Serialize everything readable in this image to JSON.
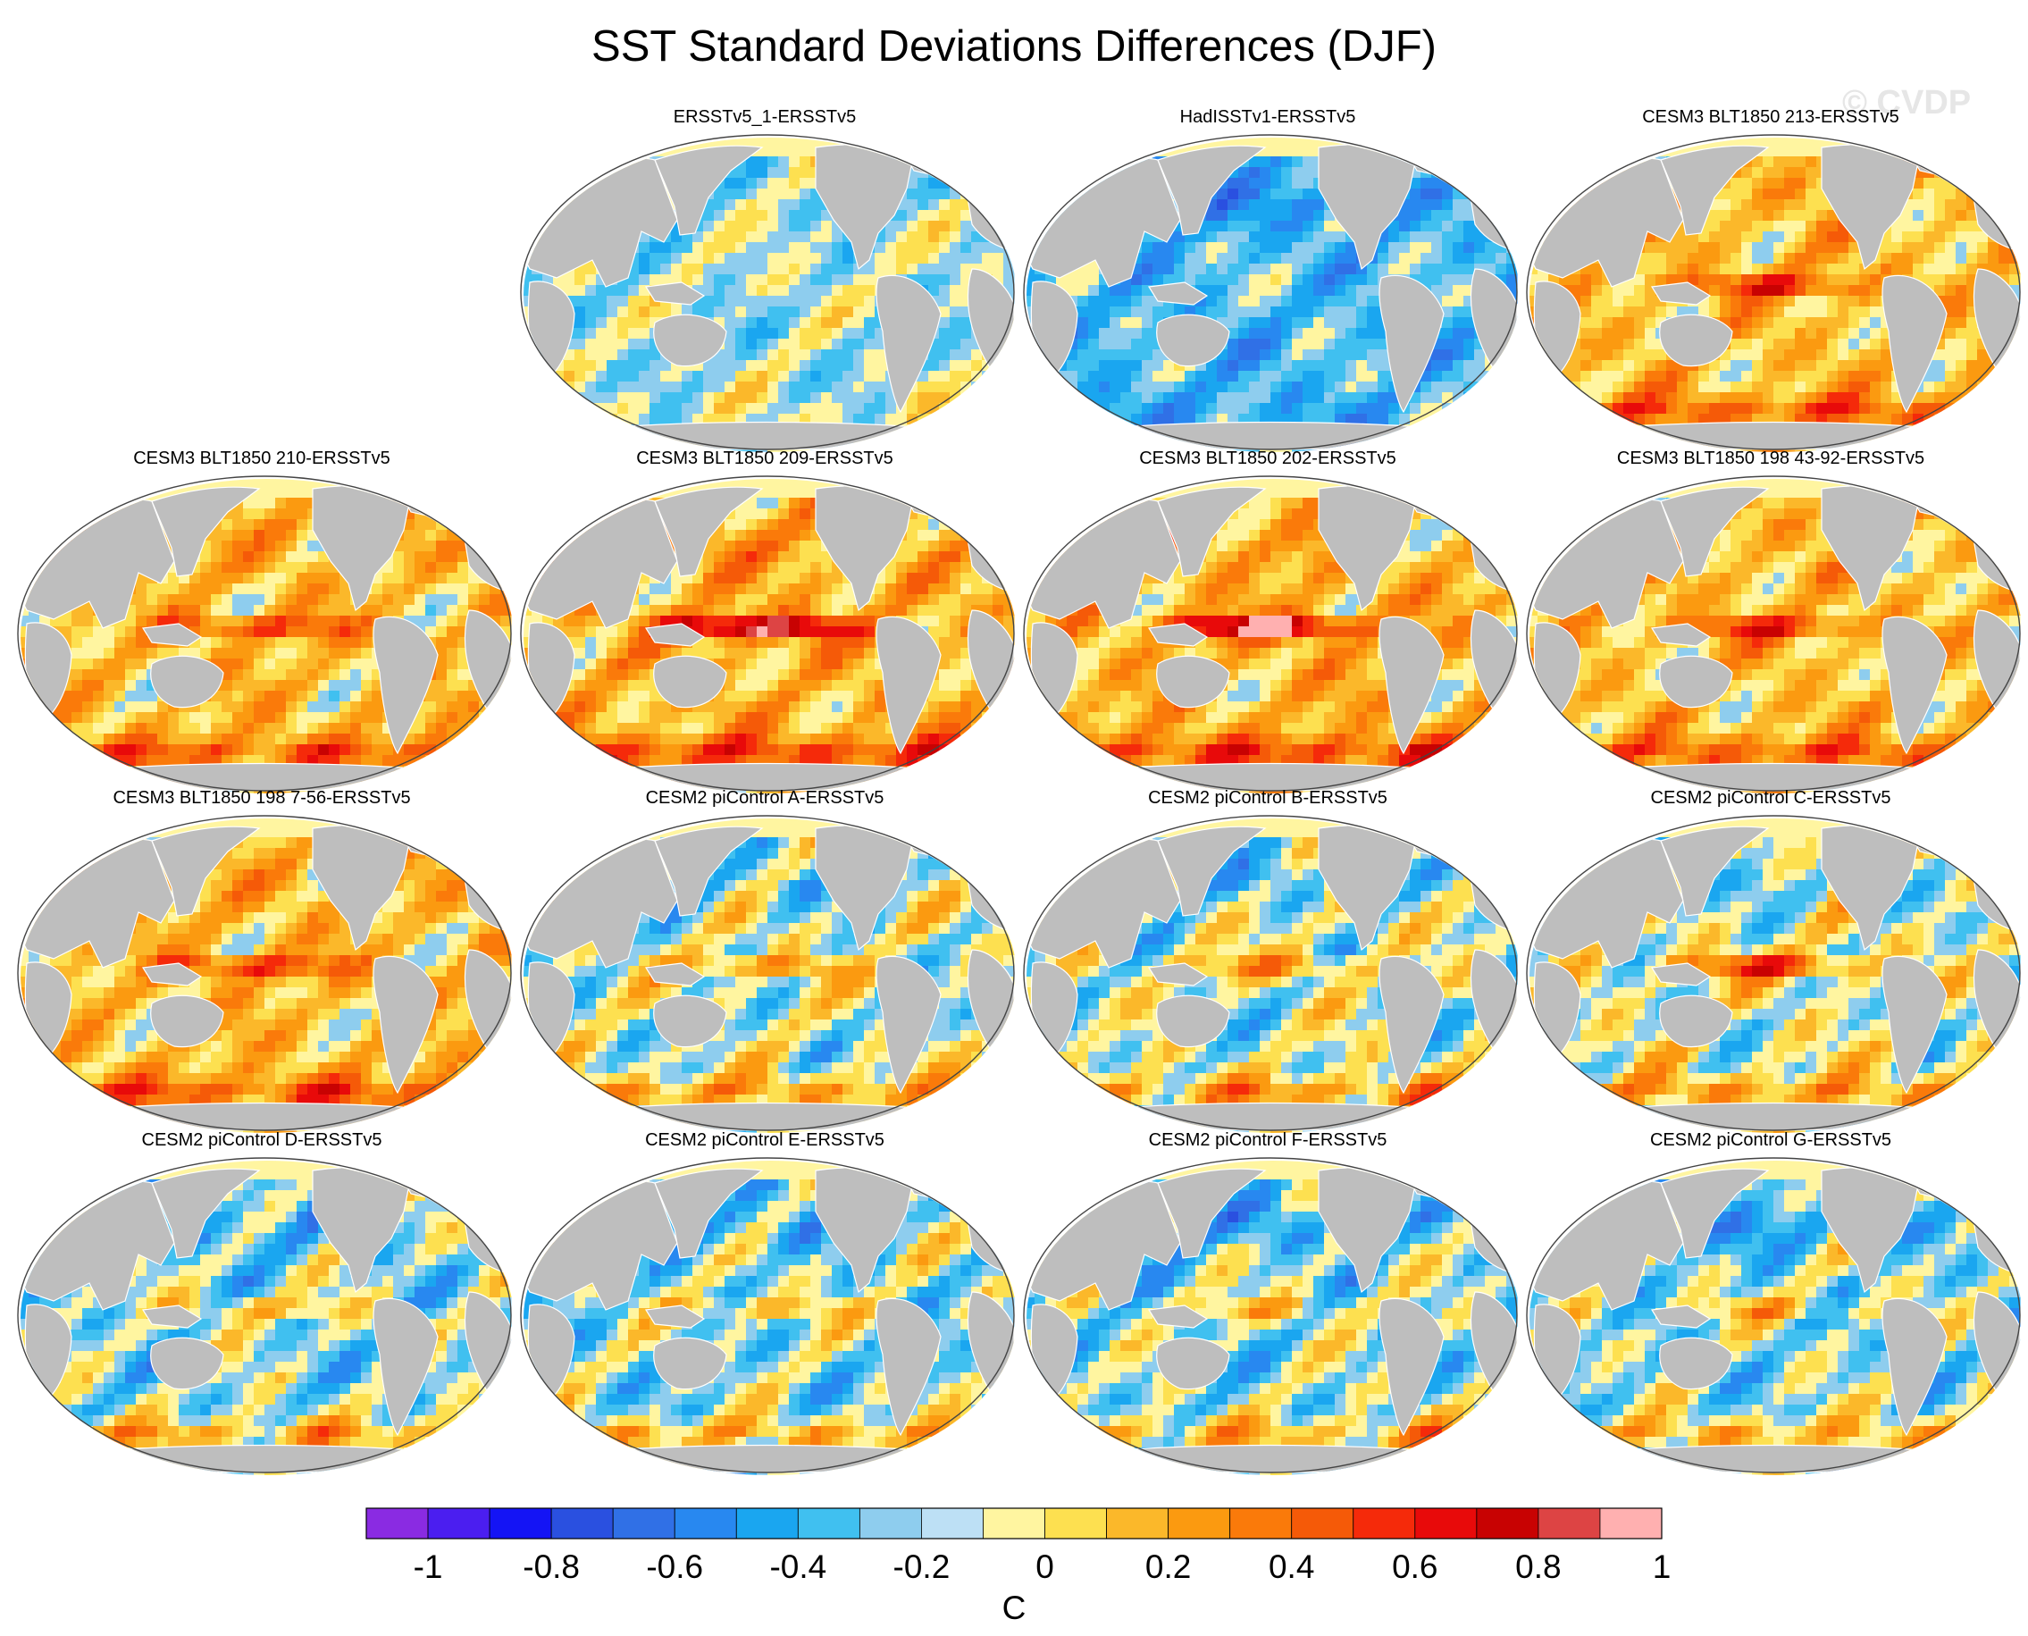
{
  "title": "SST Standard Deviations Differences (DJF)",
  "watermark": "© CVDP",
  "panels": [
    {
      "label": "ERSSTv5_1-ERSSTv5",
      "pattern": "ersst"
    },
    {
      "label": "HadISSTv1-ERSSTv5",
      "pattern": "hadisst"
    },
    {
      "label": "CESM3 BLT1850 213-ERSSTv5",
      "pattern": "warm"
    },
    {
      "label": "CESM3 BLT1850 210-ERSSTv5",
      "pattern": "warm"
    },
    {
      "label": "CESM3 BLT1850 209-ERSSTv5",
      "pattern": "hot"
    },
    {
      "label": "CESM3 BLT1850 202-ERSSTv5",
      "pattern": "hot"
    },
    {
      "label": "CESM3 BLT1850 198 43-92-ERSSTv5",
      "pattern": "warm"
    },
    {
      "label": "CESM3 BLT1850 198 7-56-ERSSTv5",
      "pattern": "warm"
    },
    {
      "label": "CESM2 piControl A-ERSSTv5",
      "pattern": "mixed"
    },
    {
      "label": "CESM2 piControl B-ERSSTv5",
      "pattern": "mixed"
    },
    {
      "label": "CESM2 piControl C-ERSSTv5",
      "pattern": "mixedwarm"
    },
    {
      "label": "CESM2 piControl D-ERSSTv5",
      "pattern": "cool"
    },
    {
      "label": "CESM2 piControl E-ERSSTv5",
      "pattern": "cool"
    },
    {
      "label": "CESM2 piControl F-ERSSTv5",
      "pattern": "cool"
    },
    {
      "label": "CESM2 piControl G-ERSSTv5",
      "pattern": "cool"
    }
  ],
  "colorbar": {
    "unit": "C",
    "tick_labels": [
      "-1",
      "-0.8",
      "-0.6",
      "-0.4",
      "-0.2",
      "0",
      "0.2",
      "0.4",
      "0.6",
      "0.8",
      "1"
    ],
    "colors": [
      "#8a2be2",
      "#4b1ef0",
      "#1414f5",
      "#2a50e0",
      "#3070e6",
      "#2888f0",
      "#1aa6f0",
      "#40c0f0",
      "#8ecdee",
      "#bde0f5",
      "#fff5a0",
      "#fde050",
      "#fbb82a",
      "#fb9a10",
      "#fa7a0a",
      "#f55a08",
      "#f52a0a",
      "#e80a0a",
      "#c80202",
      "#dd4444",
      "#ffb0b0"
    ]
  },
  "colors": {
    "land": "#bebebe",
    "ocean_neutral": "#fff5a0",
    "ocean_cool": "#bde0f5"
  }
}
